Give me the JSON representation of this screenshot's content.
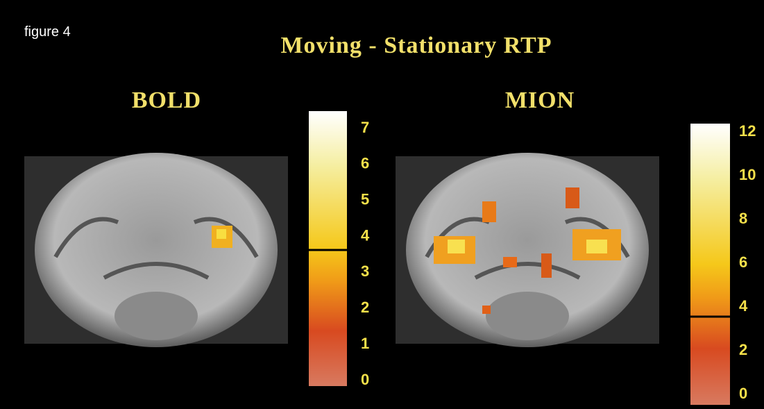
{
  "figure_label": "figure 4",
  "title": "Moving - Stationary RTP",
  "panels": [
    {
      "label": "BOLD",
      "colorbar_ticks": [
        "7",
        "6",
        "5",
        "4",
        "3",
        "2",
        "1",
        "0"
      ]
    },
    {
      "label": "MION",
      "colorbar_ticks": [
        "12",
        "10",
        "8",
        "6",
        "4",
        "2",
        "0"
      ]
    }
  ]
}
